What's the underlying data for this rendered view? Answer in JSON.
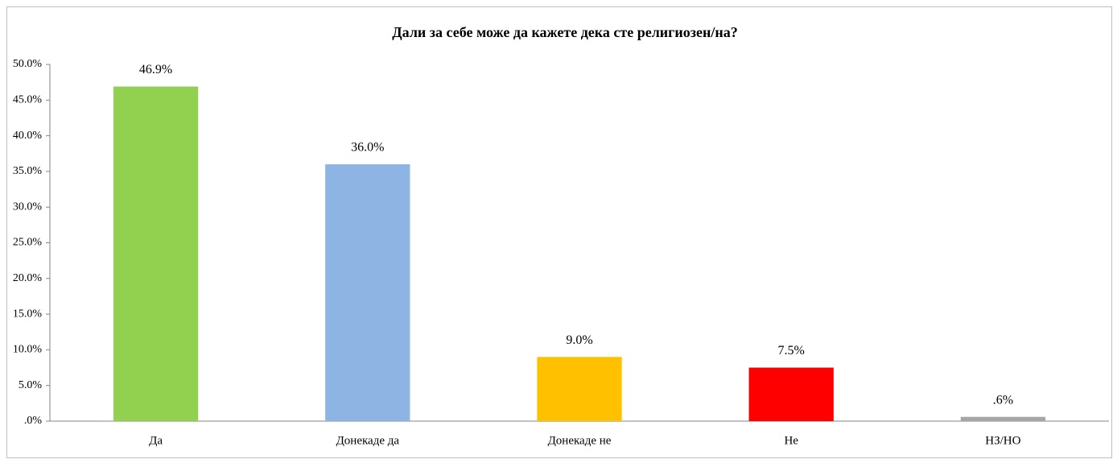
{
  "chart_data": {
    "type": "bar",
    "title": "Дали за себе може да кажете дека сте религиозен/на?",
    "categories": [
      "Да",
      "Донекаде да",
      "Донекаде не",
      "Не",
      "НЗ/НО"
    ],
    "values": [
      46.9,
      36.0,
      9.0,
      7.5,
      0.6
    ],
    "value_labels": [
      "46.9%",
      "36.0%",
      "9.0%",
      "7.5%",
      ".6%"
    ],
    "colors": [
      "#92d050",
      "#8db4e2",
      "#ffc000",
      "#ff0000",
      "#a6a6a6"
    ],
    "ylim": [
      0,
      50
    ],
    "yticks": [
      {
        "value": 0,
        "label": ".0%"
      },
      {
        "value": 5,
        "label": "5.0%"
      },
      {
        "value": 10,
        "label": "10.0%"
      },
      {
        "value": 15,
        "label": "15.0%"
      },
      {
        "value": 20,
        "label": "20.0%"
      },
      {
        "value": 25,
        "label": "25.0%"
      },
      {
        "value": 30,
        "label": "30.0%"
      },
      {
        "value": 35,
        "label": "35.0%"
      },
      {
        "value": 40,
        "label": "40.0%"
      },
      {
        "value": 45,
        "label": "45.0%"
      },
      {
        "value": 50,
        "label": "50.0%"
      }
    ],
    "grid": false
  }
}
